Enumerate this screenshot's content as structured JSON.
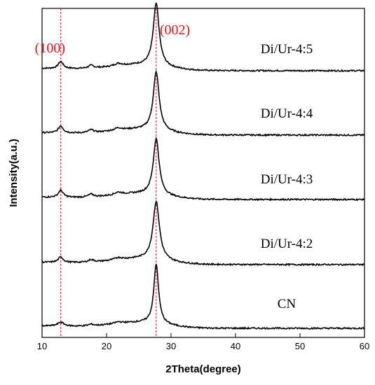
{
  "chart_data": {
    "type": "line",
    "xlabel": "2Theta(degree)",
    "ylabel": "Intensity(a.u.)",
    "xlim": [
      10,
      60
    ],
    "xticks": [
      10,
      20,
      30,
      40,
      50,
      60
    ],
    "yticks_shown": false,
    "grid": false,
    "peak_color": "#e8141c",
    "line_color": "#000000",
    "reference_lines": [
      {
        "x": 12.9,
        "label": "(100)"
      },
      {
        "x": 27.7,
        "label": "(002)"
      }
    ],
    "series": [
      {
        "name": "Di/Ur-4:5",
        "peaks": [
          {
            "center": 12.9,
            "height": 0.09,
            "width": 0.45
          },
          {
            "center": 17.6,
            "height": 0.035,
            "width": 0.5
          },
          {
            "center": 21.8,
            "height": 0.03,
            "width": 0.7
          },
          {
            "center": 27.7,
            "height": 0.8,
            "width": 0.55
          }
        ],
        "offset": 4
      },
      {
        "name": "Di/Ur-4:4",
        "peaks": [
          {
            "center": 12.9,
            "height": 0.09,
            "width": 0.45
          },
          {
            "center": 17.6,
            "height": 0.035,
            "width": 0.5
          },
          {
            "center": 21.8,
            "height": 0.03,
            "width": 0.7
          },
          {
            "center": 27.7,
            "height": 0.75,
            "width": 0.55
          }
        ],
        "offset": 3
      },
      {
        "name": "Di/Ur-4:3",
        "peaks": [
          {
            "center": 12.9,
            "height": 0.09,
            "width": 0.45
          },
          {
            "center": 17.6,
            "height": 0.035,
            "width": 0.5
          },
          {
            "center": 21.8,
            "height": 0.03,
            "width": 0.7
          },
          {
            "center": 27.7,
            "height": 0.72,
            "width": 0.55
          }
        ],
        "offset": 2
      },
      {
        "name": "Di/Ur-4:2",
        "peaks": [
          {
            "center": 12.9,
            "height": 0.07,
            "width": 0.45
          },
          {
            "center": 17.6,
            "height": 0.03,
            "width": 0.5
          },
          {
            "center": 21.8,
            "height": 0.025,
            "width": 0.7
          },
          {
            "center": 27.7,
            "height": 0.75,
            "width": 0.6
          }
        ],
        "offset": 1
      },
      {
        "name": "CN",
        "peaks": [
          {
            "center": 12.9,
            "height": 0.05,
            "width": 0.6
          },
          {
            "center": 17.6,
            "height": 0.02,
            "width": 0.5
          },
          {
            "center": 21.8,
            "height": 0.02,
            "width": 0.7
          },
          {
            "center": 27.7,
            "height": 0.76,
            "width": 0.45
          }
        ],
        "offset": 0
      }
    ]
  }
}
